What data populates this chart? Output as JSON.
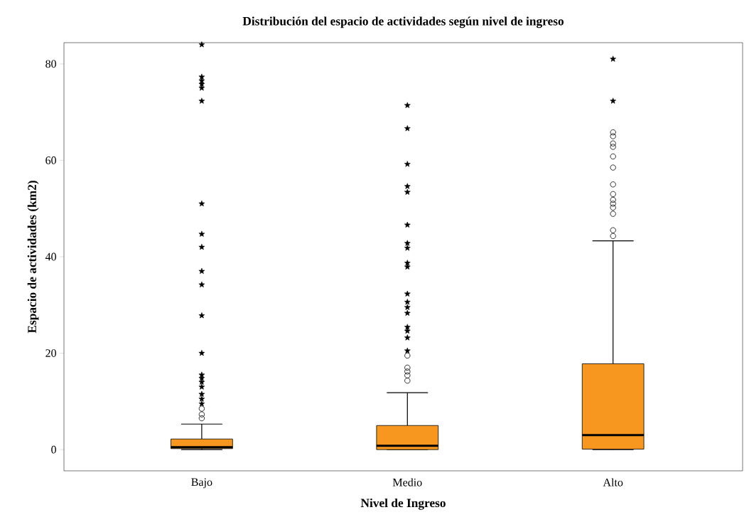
{
  "chart_data": {
    "type": "box",
    "title": "Distribución del espacio de actividades según nivel de ingreso",
    "xlabel": "Nivel de Ingreso",
    "ylabel": "Espacio de actividades (km2)",
    "categories": [
      "Bajo",
      "Medio",
      "Alto"
    ],
    "ylim": [
      -4.4,
      84.4
    ],
    "yticks": [
      0,
      20,
      40,
      60,
      80
    ],
    "marker": "circle",
    "series": [
      {
        "type": "box",
        "color": "#f7971f",
        "boxes": [
          {
            "low": 0,
            "q1": 0.2,
            "median": 0.5,
            "q3": 2.2,
            "high": 5.3,
            "outliers": [
              6.5,
              7.3,
              8.5
            ]
          },
          {
            "low": 0,
            "q1": 0,
            "median": 0.8,
            "q3": 5,
            "high": 11.8,
            "outliers": [
              14.3,
              15.4,
              16.2,
              17,
              19.5
            ]
          },
          {
            "low": 0,
            "q1": 0.1,
            "median": 3,
            "q3": 17.8,
            "high": 43.3,
            "outliers": [
              44.3,
              45.5,
              48.9,
              50.2,
              51,
              51.8,
              53,
              55,
              58.5,
              60.8,
              62.8,
              63.5,
              65,
              65.8
            ]
          }
        ]
      },
      {
        "type": "scatter",
        "marker": "star",
        "color": "#000000",
        "x": [
          "Bajo",
          "Bajo",
          "Bajo",
          "Bajo",
          "Bajo",
          "Bajo",
          "Bajo",
          "Bajo",
          "Bajo",
          "Bajo",
          "Bajo",
          "Bajo",
          "Bajo",
          "Bajo",
          "Bajo",
          "Bajo",
          "Bajo",
          "Bajo",
          "Bajo",
          "Bajo",
          "Medio",
          "Medio",
          "Medio",
          "Medio",
          "Medio",
          "Medio",
          "Medio",
          "Medio",
          "Medio",
          "Medio",
          "Medio",
          "Medio",
          "Medio",
          "Medio",
          "Medio",
          "Medio",
          "Medio",
          "Medio",
          "Alto",
          "Alto"
        ],
        "values": [
          9.5,
          10.5,
          11.5,
          13,
          14,
          14.8,
          15.5,
          20,
          27.8,
          34.2,
          37,
          42,
          44.7,
          51,
          72.3,
          75,
          75.8,
          76.5,
          77.3,
          84,
          20.5,
          23.2,
          24.6,
          25.4,
          28.3,
          29.5,
          30.6,
          32.3,
          37.9,
          38.7,
          41.8,
          42.8,
          46.6,
          53.4,
          54.6,
          59.2,
          66.6,
          71.4,
          72.3,
          81
        ]
      }
    ]
  }
}
